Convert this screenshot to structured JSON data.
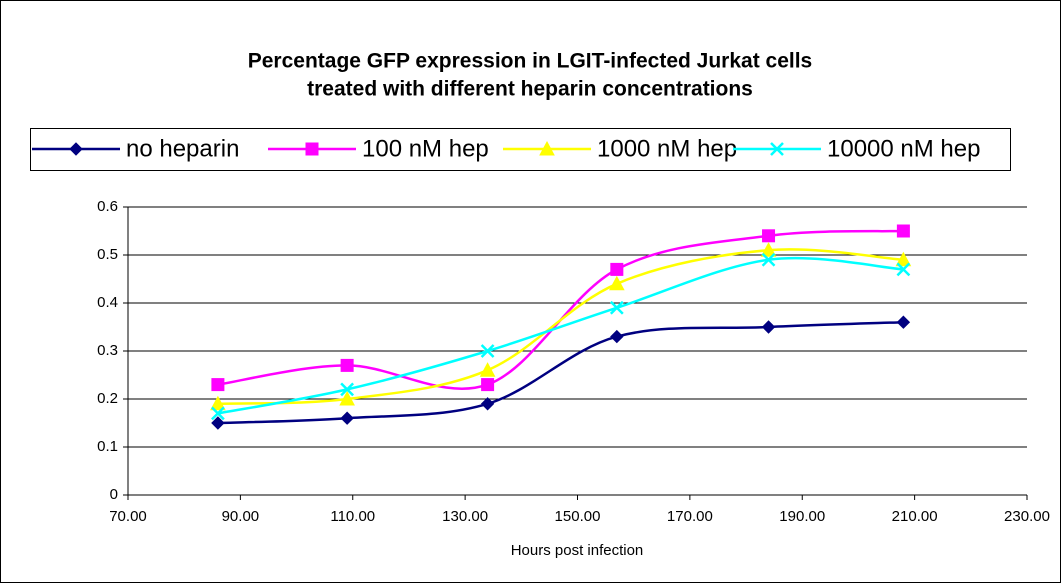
{
  "chart_data": {
    "type": "scatter-smooth",
    "title": [
      "Percentage GFP expression in LGIT-infected Jurkat cells",
      "treated with different heparin concentrations"
    ],
    "x_label": "Hours post infection",
    "x": [
      86,
      109,
      134,
      157,
      184,
      208
    ],
    "series": [
      {
        "name": "no heparin",
        "color": "#000080",
        "marker": "diamond",
        "values": [
          0.15,
          0.16,
          0.19,
          0.33,
          0.35,
          0.36
        ]
      },
      {
        "name": "100 nM hep",
        "color": "#ff00ff",
        "marker": "square",
        "values": [
          0.23,
          0.27,
          0.23,
          0.47,
          0.54,
          0.55
        ]
      },
      {
        "name": "1000 nM hep",
        "color": "#ffff00",
        "marker": "triangle",
        "values": [
          0.19,
          0.2,
          0.26,
          0.44,
          0.51,
          0.49
        ]
      },
      {
        "name": "10000 nM hep",
        "color": "#00ffff",
        "marker": "x",
        "values": [
          0.17,
          0.22,
          0.3,
          0.39,
          0.49,
          0.47
        ]
      }
    ],
    "xlim": [
      70,
      230
    ],
    "xticks": [
      {
        "value": 70,
        "label": "70.00"
      },
      {
        "value": 90,
        "label": "90.00"
      },
      {
        "value": 110,
        "label": "110.00"
      },
      {
        "value": 130,
        "label": "130.00"
      },
      {
        "value": 150,
        "label": "150.00"
      },
      {
        "value": 170,
        "label": "170.00"
      },
      {
        "value": 190,
        "label": "190.00"
      },
      {
        "value": 210,
        "label": "210.00"
      },
      {
        "value": 230,
        "label": "230.00"
      }
    ],
    "ylim": [
      0,
      0.6
    ],
    "yticks": [
      0,
      0.1,
      0.2,
      0.3,
      0.4,
      0.5,
      0.6
    ],
    "grid": true,
    "legend": "top"
  }
}
